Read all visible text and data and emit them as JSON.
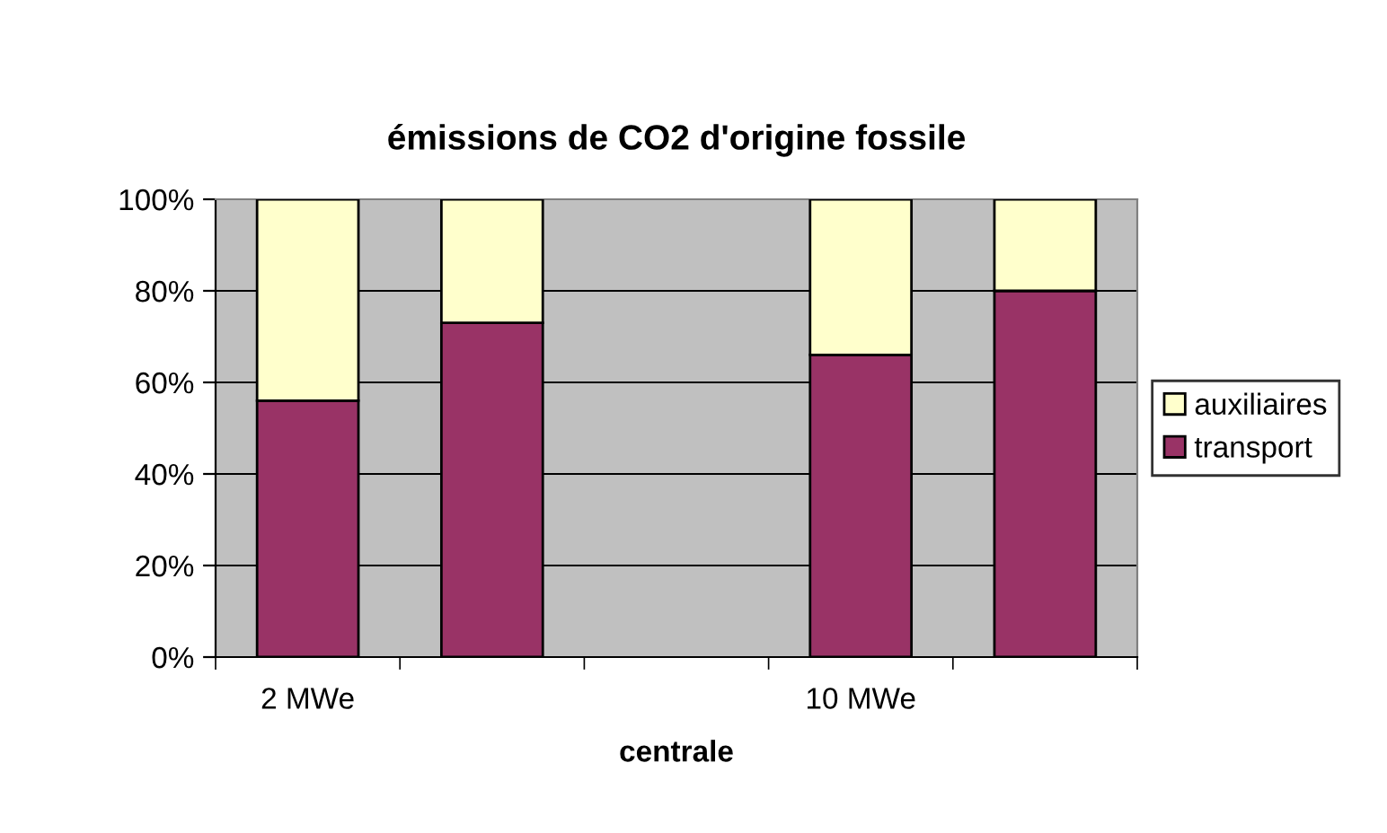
{
  "chart_data": {
    "type": "bar",
    "stacked": true,
    "title": "émissions de CO2 d'origine fossile",
    "xlabel": "centrale",
    "categories": [
      "2 MWe",
      null,
      null,
      "10 MWe",
      null
    ],
    "series": [
      {
        "name": "transport",
        "color": "#993366",
        "values": [
          56,
          73,
          null,
          66,
          80
        ]
      },
      {
        "name": "auxiliaires",
        "color": "#ffffcc",
        "values": [
          44,
          27,
          null,
          34,
          20
        ]
      }
    ],
    "ylim": [
      0,
      100
    ],
    "yticks": [
      {
        "value": 0,
        "label": "0%"
      },
      {
        "value": 20,
        "label": "20%"
      },
      {
        "value": 40,
        "label": "40%"
      },
      {
        "value": 60,
        "label": "60%"
      },
      {
        "value": 80,
        "label": "80%"
      },
      {
        "value": 100,
        "label": "100%"
      }
    ],
    "grid": "y",
    "legend": "right"
  }
}
